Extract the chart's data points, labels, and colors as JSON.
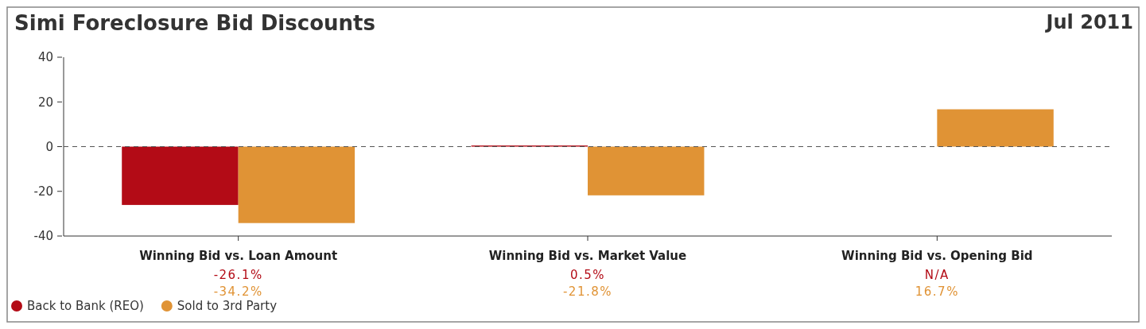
{
  "chart_data": {
    "type": "bar",
    "title": "Simi Foreclosure Bid Discounts",
    "subtitle": "Jul 2011",
    "categories": [
      "Winning Bid vs. Loan Amount",
      "Winning Bid vs. Market Value",
      "Winning Bid vs. Opening Bid"
    ],
    "series": [
      {
        "name": "Back to Bank (REO)",
        "color": "#b30b16",
        "values": [
          -26.1,
          0.5,
          null
        ],
        "value_labels": [
          "-26.1%",
          "0.5%",
          "N/A"
        ]
      },
      {
        "name": "Sold to 3rd Party",
        "color": "#e09335",
        "values": [
          -34.2,
          -21.8,
          16.7
        ],
        "value_labels": [
          "-34.2%",
          "-21.8%",
          "16.7%"
        ]
      }
    ],
    "ylim": [
      -40,
      40
    ],
    "yticks": [
      -40,
      -20,
      0,
      20,
      40
    ],
    "ref_lines": [
      {
        "axis": "y",
        "value": 0,
        "line_style": "dashed",
        "color": "#555555"
      }
    ],
    "legend": "bottom left"
  }
}
